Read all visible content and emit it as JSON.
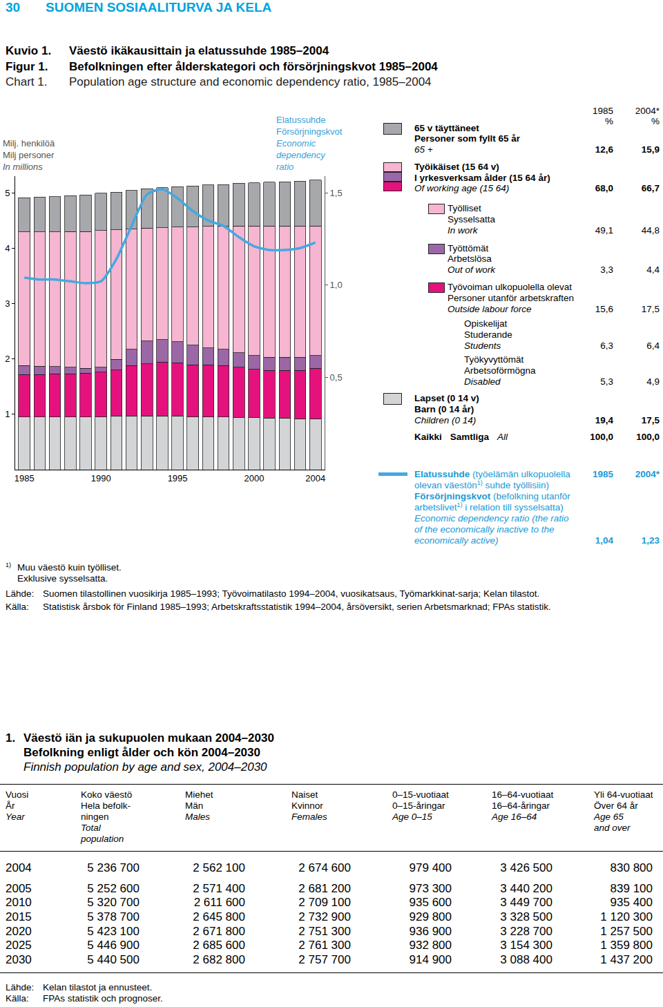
{
  "header": {
    "page": "30",
    "title": "SUOMEN SOSIAALITURVA JA KELA"
  },
  "figure_titles": [
    {
      "label": "Kuvio 1.",
      "text": "Väestö ikäkausittain ja elatussuhde 1985–2004"
    },
    {
      "label": "Figur 1.",
      "text": "Befolkningen efter ålderskategori och försörjningskvot 1985–2004"
    },
    {
      "label": "Chart 1.",
      "text": "Population age structure and economic dependency ratio, 1985–2004"
    }
  ],
  "chart_data": {
    "type": "bar",
    "stacked": true,
    "grid": false,
    "ylabel": {
      "fi": "Milj. henkilöä",
      "sv": "Milj personer",
      "en": "In millions"
    },
    "y2label": {
      "fi": "Elatussuhde",
      "sv": "Försörjningskvot",
      "en": [
        "Economic",
        "dependency",
        "ratio"
      ]
    },
    "categories": [
      "1985",
      null,
      null,
      null,
      null,
      "1990",
      null,
      null,
      null,
      null,
      "1995",
      null,
      null,
      null,
      null,
      "2000",
      null,
      null,
      null,
      "2004"
    ],
    "series": [
      {
        "name": "Children (0 14)",
        "color": "#d3d4d6",
        "values": [
          0.95,
          0.95,
          0.95,
          0.95,
          0.95,
          0.96,
          0.97,
          0.97,
          0.97,
          0.97,
          0.97,
          0.96,
          0.96,
          0.95,
          0.94,
          0.94,
          0.93,
          0.93,
          0.92,
          0.92
        ]
      },
      {
        "name": "Outside labour force",
        "color": "#e5127d",
        "values": [
          0.77,
          0.77,
          0.78,
          0.78,
          0.79,
          0.8,
          0.83,
          0.91,
          0.94,
          0.97,
          0.96,
          0.93,
          0.93,
          0.93,
          0.91,
          0.87,
          0.86,
          0.86,
          0.87,
          0.91
        ]
      },
      {
        "name": "Out of work",
        "color": "#9b67a6",
        "values": [
          0.16,
          0.15,
          0.13,
          0.12,
          0.09,
          0.09,
          0.19,
          0.29,
          0.41,
          0.41,
          0.38,
          0.36,
          0.31,
          0.29,
          0.26,
          0.25,
          0.24,
          0.24,
          0.24,
          0.23
        ]
      },
      {
        "name": "In work",
        "color": "#f6b5d1",
        "values": [
          2.41,
          2.42,
          2.43,
          2.45,
          2.47,
          2.47,
          2.34,
          2.17,
          2.04,
          2.02,
          2.07,
          2.13,
          2.19,
          2.22,
          2.29,
          2.34,
          2.37,
          2.37,
          2.37,
          2.34
        ]
      },
      {
        "name": "65 +",
        "color": "#a6a8ab",
        "values": [
          0.62,
          0.63,
          0.64,
          0.65,
          0.66,
          0.67,
          0.68,
          0.7,
          0.71,
          0.72,
          0.73,
          0.74,
          0.75,
          0.76,
          0.77,
          0.78,
          0.79,
          0.8,
          0.81,
          0.83
        ]
      },
      {
        "name": "Economic dependency ratio",
        "type": "line",
        "axis": "y2",
        "color": "#45a8e0",
        "values": [
          1.04,
          1.03,
          1.03,
          1.02,
          1.01,
          1.02,
          1.14,
          1.32,
          1.49,
          1.52,
          1.47,
          1.4,
          1.35,
          1.32,
          1.26,
          1.21,
          1.19,
          1.19,
          1.2,
          1.23
        ]
      }
    ],
    "ylim": [
      0,
      5.3
    ],
    "yticks": [
      1,
      2,
      3,
      4,
      5
    ],
    "y2lim": [
      0,
      1.59
    ],
    "y2ticks": [
      {
        "value": 0.5,
        "label": "0,5"
      },
      {
        "value": 1.0,
        "label": "1,0"
      },
      {
        "value": 1.5,
        "label": "1,5"
      }
    ]
  },
  "key": {
    "columns": [
      "1985",
      "2004*"
    ],
    "units": [
      "%",
      "%"
    ],
    "rows": [
      {
        "lines": [
          "65 v täyttäneet",
          "Personer som fyllt 65 år",
          "65 +"
        ],
        "values": [
          "12,6",
          "15,9"
        ],
        "colors": [
          "#a6a8ab"
        ]
      },
      {
        "lines": [
          "Työikäiset (15 64 v)",
          "I yrkesverksam ålder (15 64 år)",
          "Of working age (15 64)"
        ],
        "values": [
          "68,0",
          "66,7"
        ],
        "colors": [
          "#f6b5d1",
          "#9b67a6",
          "#e5127d"
        ]
      },
      {
        "lines": [
          "Työlliset",
          "Sysselsatta",
          "In work"
        ],
        "values": [
          "49,1",
          "44,8"
        ],
        "colors": [
          "#f6b5d1"
        ]
      },
      {
        "lines": [
          "Työttömät",
          "Arbetslösa",
          "Out of work"
        ],
        "values": [
          "3,3",
          "4,4"
        ],
        "colors": [
          "#9b67a6"
        ]
      },
      {
        "lines": [
          "Työvoiman ulkopuolella olevat",
          "Personer utanför arbetskraften",
          "Outside labour force"
        ],
        "values": [
          "15,6",
          "17,5"
        ],
        "colors": [
          "#e5127d"
        ]
      },
      {
        "lines": [
          "Opiskelijat",
          "Studerande",
          "Students"
        ],
        "values": [
          "6,3",
          "6,4"
        ],
        "colors": []
      },
      {
        "lines": [
          "Työkyvyttömät",
          "Arbetsoförmögna",
          "Disabled"
        ],
        "values": [
          "5,3",
          "4,9"
        ],
        "colors": []
      },
      {
        "lines": [
          "Lapset (0 14 v)",
          "Barn (0 14 år)",
          "Children (0 14)"
        ],
        "values": [
          "19,4",
          "17,5"
        ],
        "colors": [
          "#d3d4d6"
        ]
      }
    ],
    "total": {
      "lines": [
        "Kaikki",
        "Samtliga",
        "All"
      ],
      "values": [
        "100,0",
        "100,0"
      ]
    }
  },
  "ratio_key": {
    "color": "#45a8e0",
    "columns": [
      "1985",
      "2004*"
    ],
    "values": [
      "1,04",
      "1,23"
    ],
    "lines": [
      [
        {
          "text": "Elatussuhde",
          "bold": true
        },
        {
          "text": " (työelämän ulkopuolella"
        }
      ],
      [
        {
          "text": "olevan väestön"
        },
        {
          "text": "1)",
          "sup": true
        },
        {
          "text": " suhde työllisiin)"
        }
      ],
      [
        {
          "text": "Försörjningskvot",
          "bold": true
        },
        {
          "text": " (befolkning utanför"
        }
      ],
      [
        {
          "text": "arbetslivet"
        },
        {
          "text": "1)",
          "sup": true
        },
        {
          "text": " i relation till sysselsatta)"
        }
      ],
      [
        {
          "text": "Economic dependency ratio (the ratio",
          "italic": true
        }
      ],
      [
        {
          "text": "of the economically inactive to the",
          "italic": true
        }
      ],
      [
        {
          "text": "economically active)",
          "italic": true
        }
      ]
    ]
  },
  "footnote": {
    "mark": "1)",
    "lines": [
      "Muu väestö kuin työlliset.",
      "Exklusive sysselsatta."
    ]
  },
  "sources": [
    {
      "label": "Lähde:",
      "text": "Suomen tilastollinen vuosikirja 1985–1993; Työvoimatilasto 1994–2004, vuosikatsaus, Työmarkkinat-sarja; Kelan tilastot."
    },
    {
      "label": "Källa:",
      "text": "Statistisk årsbok för Finland 1985–1993; Arbetskraftsstatistik 1994–2004, årsöversikt, serien Arbetsmarknad; FPAs statistik."
    }
  ],
  "table": {
    "number": "1.",
    "titles": [
      "Väestö iän ja sukupuolen mukaan 2004–2030",
      "Befolkning enligt ålder och kön 2004–2030",
      "Finnish population by age and sex, 2004–2030"
    ],
    "header": [
      {
        "lines": [
          "Vuosi",
          "År"
        ],
        "en": [
          "Year"
        ]
      },
      {
        "lines": [
          "Koko väestö",
          "Hela befolk-",
          "ningen"
        ],
        "en": [
          "Total",
          "population"
        ]
      },
      {
        "lines": [
          "Miehet",
          "Män"
        ],
        "en": [
          "Males"
        ]
      },
      {
        "lines": [
          "Naiset",
          "Kvinnor"
        ],
        "en": [
          "Females"
        ]
      },
      {
        "lines": [
          "0–15-vuotiaat",
          "0–15-åringar"
        ],
        "en": [
          "Age 0–15"
        ]
      },
      {
        "lines": [
          "16–64-vuotiaat",
          "16–64-åringar"
        ],
        "en": [
          "Age 16–64"
        ]
      },
      {
        "lines": [
          "Yli 64-vuotiaat",
          "Över 64 år"
        ],
        "en": [
          "Age 65",
          "and over"
        ]
      }
    ],
    "rows": [
      [
        "2004",
        "5 236 700",
        "2 562 100",
        "2 674 600",
        "979 400",
        "3 426 500",
        "830 800"
      ],
      [
        "2005",
        "5 252 600",
        "2 571 400",
        "2 681 200",
        "973 300",
        "3 440 200",
        "839 100"
      ],
      [
        "2010",
        "5 320 700",
        "2 611 600",
        "2 709 100",
        "935 600",
        "3 449 700",
        "935 400"
      ],
      [
        "2015",
        "5 378 700",
        "2 645 800",
        "2 732 900",
        "929 800",
        "3 328 500",
        "1 120 300"
      ],
      [
        "2020",
        "5 423 100",
        "2 671 800",
        "2 751 300",
        "936 900",
        "3 228 700",
        "1 257 500"
      ],
      [
        "2025",
        "5 446 900",
        "2 685 600",
        "2 761 300",
        "932 800",
        "3 154 300",
        "1 359 800"
      ],
      [
        "2030",
        "5 440 500",
        "2 682 800",
        "2 757 700",
        "914 900",
        "3 088 400",
        "1 437 200"
      ]
    ],
    "sources": [
      {
        "label": "Lähde:",
        "text": "Kelan tilastot ja ennusteet."
      },
      {
        "label": "Källa:",
        "text": "FPAs statistik och prognoser."
      }
    ]
  }
}
